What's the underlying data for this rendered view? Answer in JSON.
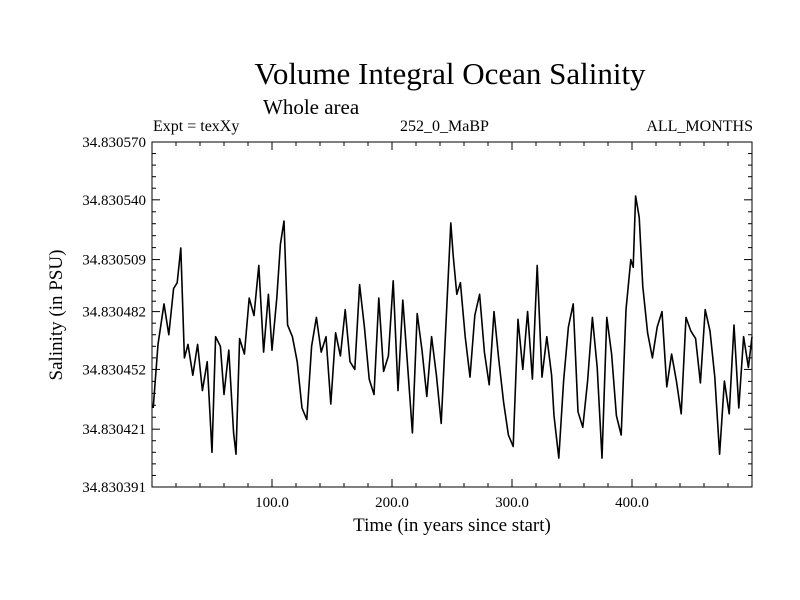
{
  "chart_data": {
    "type": "line",
    "title": "Volume Integral Ocean Salinity",
    "subtitle": "Whole area",
    "header_left": "Expt = texXy",
    "header_center": "252_0_MaBP",
    "header_right": "ALL_MONTHS",
    "xlabel": "Time (in years since start)",
    "ylabel": "Salinity (in PSU)",
    "xlim": [
      0,
      500
    ],
    "ylim": [
      34.830391,
      34.83057
    ],
    "x_ticks": [
      {
        "value": 100,
        "label": "100.0"
      },
      {
        "value": 200,
        "label": "200.0"
      },
      {
        "value": 300,
        "label": "300.0"
      },
      {
        "value": 400,
        "label": "400.0"
      }
    ],
    "y_ticks": [
      {
        "value": 34.83057,
        "label": "34.830570"
      },
      {
        "value": 34.83054,
        "label": "34.830540"
      },
      {
        "value": 34.830509,
        "label": "34.830509"
      },
      {
        "value": 34.830482,
        "label": "34.830482"
      },
      {
        "value": 34.830452,
        "label": "34.830452"
      },
      {
        "value": 34.830421,
        "label": "34.830421"
      },
      {
        "value": 34.830391,
        "label": "34.830391"
      }
    ],
    "series": [
      {
        "name": "salinity",
        "x": [
          1,
          5,
          10,
          14,
          18,
          21,
          24,
          27,
          30,
          34,
          38,
          42,
          46,
          50,
          53,
          57,
          60,
          64,
          68,
          70,
          73,
          77,
          81,
          85,
          89,
          93,
          97,
          100,
          104,
          107,
          110,
          113,
          117,
          121,
          125,
          129,
          133,
          137,
          141,
          145,
          149,
          153,
          157,
          161,
          165,
          169,
          173,
          177,
          181,
          185,
          189,
          193,
          197,
          201,
          205,
          209,
          213,
          217,
          221,
          225,
          229,
          233,
          237,
          241,
          245,
          249,
          251,
          254,
          257,
          261,
          265,
          269,
          273,
          277,
          281,
          285,
          289,
          293,
          297,
          301,
          305,
          309,
          313,
          317,
          321,
          325,
          329,
          333,
          335,
          339,
          343,
          347,
          351,
          355,
          359,
          363,
          367,
          371,
          375,
          379,
          383,
          387,
          391,
          395,
          399,
          401,
          403,
          406,
          409,
          413,
          417,
          421,
          425,
          429,
          433,
          437,
          441,
          445,
          449,
          453,
          457,
          461,
          465,
          469,
          473,
          477,
          481,
          485,
          489,
          493,
          497,
          500
        ],
        "y": [
          34.830432,
          34.830465,
          34.830486,
          34.83047,
          34.830494,
          34.830497,
          34.830515,
          34.830458,
          34.830465,
          34.830449,
          34.830465,
          34.830441,
          34.830456,
          34.830409,
          34.830469,
          34.830464,
          34.830439,
          34.830462,
          34.830419,
          34.830408,
          34.830468,
          34.83046,
          34.830489,
          34.83048,
          34.830506,
          34.830461,
          34.830491,
          34.830462,
          34.830489,
          34.830517,
          34.830529,
          34.830475,
          34.830469,
          34.830456,
          34.830432,
          34.830426,
          34.830464,
          34.830479,
          34.830461,
          34.830469,
          34.830434,
          34.830471,
          34.830459,
          34.830483,
          34.830456,
          34.830452,
          34.830496,
          34.830474,
          34.830447,
          34.830439,
          34.830489,
          34.830451,
          34.830459,
          34.830498,
          34.830441,
          34.830488,
          34.830454,
          34.830419,
          34.830481,
          34.830462,
          34.830438,
          34.830469,
          34.830449,
          34.830424,
          34.830476,
          34.830528,
          34.830511,
          34.830491,
          34.830497,
          34.830469,
          34.830448,
          34.83048,
          34.830491,
          34.830461,
          34.830444,
          34.830482,
          34.830457,
          34.830435,
          34.830418,
          34.830412,
          34.830478,
          34.830452,
          34.830482,
          34.830447,
          34.830506,
          34.830448,
          34.830469,
          34.830449,
          34.830428,
          34.830406,
          34.830446,
          34.830474,
          34.830486,
          34.83043,
          34.830422,
          34.830446,
          34.830479,
          34.830453,
          34.830406,
          34.830479,
          34.83046,
          34.830428,
          34.830418,
          34.830483,
          34.830509,
          34.830505,
          34.830542,
          34.830531,
          34.830495,
          34.830471,
          34.830458,
          34.830474,
          34.830482,
          34.830443,
          34.83046,
          34.830446,
          34.830429,
          34.830479,
          34.830472,
          34.830468,
          34.830445,
          34.830483,
          34.830472,
          34.830448,
          34.830408,
          34.830446,
          34.830429,
          34.830475,
          34.830432,
          34.830469,
          34.830453,
          34.830469
        ]
      }
    ]
  }
}
